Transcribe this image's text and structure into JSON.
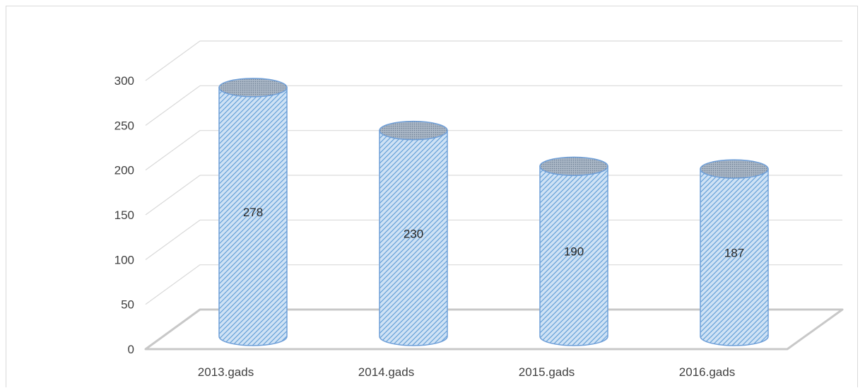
{
  "chart_data": {
    "type": "bar",
    "style": "3d-cylinder",
    "categories": [
      "2013.gads",
      "2014.gads",
      "2015.gads",
      "2016.gads"
    ],
    "values": [
      278,
      230,
      190,
      187
    ],
    "data_labels": [
      "278",
      "230",
      "190",
      "187"
    ],
    "ylim": [
      0,
      300
    ],
    "yticks": [
      0,
      50,
      100,
      150,
      200,
      250,
      300
    ],
    "ytick_labels": [
      "0",
      "50",
      "100",
      "150",
      "200",
      "250",
      "300"
    ],
    "title": "",
    "xlabel": "",
    "ylabel": "",
    "grid": true,
    "legend": "none",
    "colors": {
      "bar_fill": "#aecdec",
      "bar_stripe": "#5b9bd5",
      "bar_outline": "#6f9fd8",
      "cap_fill": "#8fa2b8",
      "grid": "#d9d9d9",
      "floor": "#c8c8c8"
    }
  }
}
